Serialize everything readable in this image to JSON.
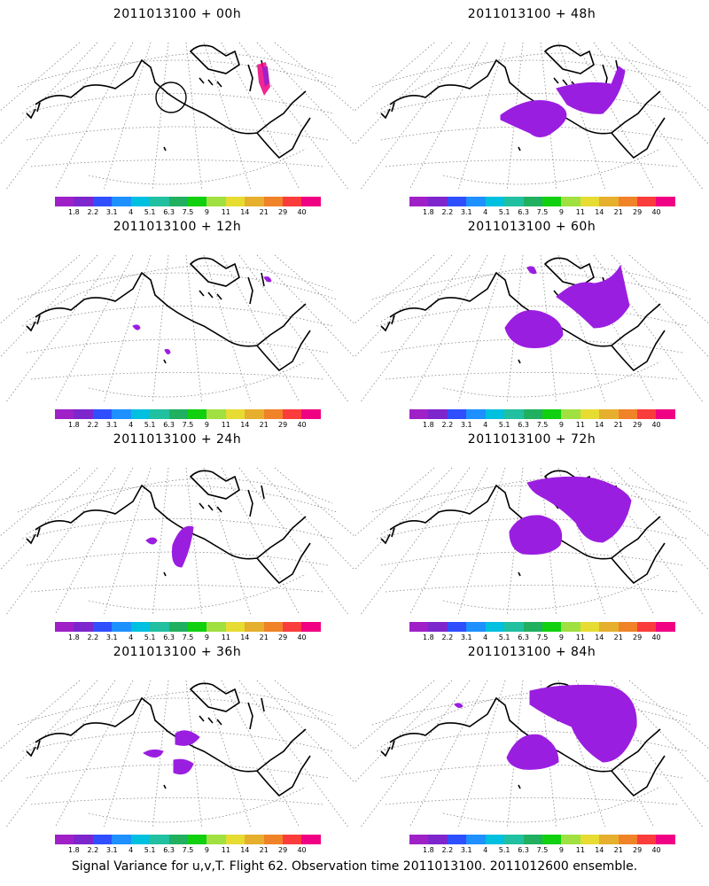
{
  "panels": [
    {
      "title": "2011013100 + 00h"
    },
    {
      "title": "2011013100 + 48h"
    },
    {
      "title": "2011013100 + 12h"
    },
    {
      "title": "2011013100 + 60h"
    },
    {
      "title": "2011013100 + 24h"
    },
    {
      "title": "2011013100 + 72h"
    },
    {
      "title": "2011013100 + 36h"
    },
    {
      "title": "2011013100 + 84h"
    }
  ],
  "colorbar": {
    "colors": [
      "#a020c8",
      "#7d26cd",
      "#2f4fff",
      "#1e90ff",
      "#00c0e0",
      "#20c0a0",
      "#20b060",
      "#10d010",
      "#a0e040",
      "#e6dc32",
      "#e6af2d",
      "#f08228",
      "#fa3c3c",
      "#f00082"
    ],
    "labels": [
      "1.8",
      "2.2",
      "3.1",
      "4",
      "5.1",
      "6.3",
      "7.5",
      "9",
      "11",
      "14",
      "21",
      "29",
      "40"
    ]
  },
  "caption": "Signal Variance for u,v,T. Flight 62. Observation time 2011013100. 2011012600 ensemble."
}
